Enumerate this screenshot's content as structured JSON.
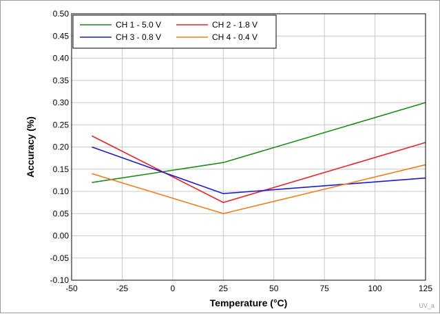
{
  "chart_data": {
    "type": "line",
    "title": "",
    "xlabel": "Temperature (°C)",
    "ylabel": "Accuracy (%)",
    "xlim": [
      -50,
      125
    ],
    "ylim": [
      -0.1,
      0.5
    ],
    "xticks": [
      -50,
      -25,
      0,
      25,
      50,
      75,
      100,
      125
    ],
    "yticks": [
      -0.1,
      -0.05,
      0.0,
      0.05,
      0.1,
      0.15,
      0.2,
      0.25,
      0.3,
      0.35,
      0.4,
      0.45,
      0.5
    ],
    "grid": true,
    "legend_position": "top-left",
    "x": [
      -40,
      25,
      125
    ],
    "series": [
      {
        "name": "CH 1 - 5.0 V",
        "color": "#1a8a1a",
        "values": [
          0.12,
          0.165,
          0.3
        ]
      },
      {
        "name": "CH 2 - 1.8 V",
        "color": "#e8212b",
        "values": [
          0.225,
          0.075,
          0.21
        ]
      },
      {
        "name": "CH 3 - 0.8 V",
        "color": "#1a1acc",
        "values": [
          0.2,
          0.095,
          0.13
        ]
      },
      {
        "name": "CH 4 - 0.4 V",
        "color": "#f07d1a",
        "values": [
          0.14,
          0.05,
          0.16
        ]
      }
    ],
    "annotation": "UV_a"
  }
}
